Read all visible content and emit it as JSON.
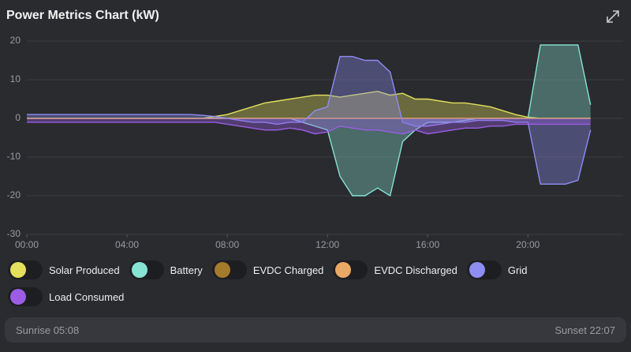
{
  "chart_data": {
    "type": "area",
    "title": "Power Metrics Chart (kW)",
    "x": [
      0,
      0.5,
      1,
      1.5,
      2,
      2.5,
      3,
      3.5,
      4,
      4.5,
      5,
      5.5,
      6,
      6.5,
      7,
      7.5,
      8,
      8.5,
      9,
      9.5,
      10,
      10.5,
      11,
      11.5,
      12,
      12.5,
      13,
      13.5,
      14,
      14.5,
      15,
      15.5,
      16,
      16.5,
      17,
      17.5,
      18,
      18.5,
      19,
      19.5,
      20,
      20.5,
      21,
      21.5,
      22,
      22.5
    ],
    "xlim": [
      0,
      23.8
    ],
    "xticks": [
      {
        "value": 0,
        "label": "00:00"
      },
      {
        "value": 4,
        "label": "04:00"
      },
      {
        "value": 8,
        "label": "08:00"
      },
      {
        "value": 12,
        "label": "12:00"
      },
      {
        "value": 16,
        "label": "16:00"
      },
      {
        "value": 20,
        "label": "20:00"
      }
    ],
    "ylim": [
      -30,
      20
    ],
    "yticks": [
      -30,
      -20,
      -10,
      0,
      10,
      20
    ],
    "grid": true,
    "series": [
      {
        "name": "Solar Produced",
        "color": "#e3e05c",
        "values": [
          0,
          0,
          0,
          0,
          0,
          0,
          0,
          0,
          0,
          0,
          0,
          0,
          0,
          0,
          0,
          0.5,
          1,
          2,
          3,
          4,
          4.5,
          5,
          5.5,
          6,
          6,
          5.5,
          6,
          6.5,
          7,
          6,
          6.5,
          5,
          5,
          4.5,
          4,
          4,
          3.5,
          3,
          2,
          1,
          0.3,
          0,
          0,
          0,
          0,
          0
        ]
      },
      {
        "name": "Battery",
        "color": "#86e3d3",
        "values": [
          0,
          0,
          0,
          0,
          0,
          0,
          0,
          0,
          0,
          0,
          0,
          0,
          0,
          0,
          0,
          0,
          0,
          0,
          0,
          0,
          0,
          0,
          -1,
          -2,
          -3,
          -15,
          -20,
          -20,
          -18,
          -20,
          -6,
          -3,
          -1,
          -1,
          -1,
          -0.5,
          0,
          0,
          0,
          0,
          0,
          19,
          19,
          19,
          19,
          3.5
        ]
      },
      {
        "name": "EVDC Charged",
        "color": "#a47a2c",
        "values": [
          0,
          0,
          0,
          0,
          0,
          0,
          0,
          0,
          0,
          0,
          0,
          0,
          0,
          0,
          0,
          0,
          0,
          0,
          0,
          0,
          0,
          0,
          0,
          0,
          0,
          0,
          0,
          0,
          0,
          0,
          0,
          0,
          0,
          0,
          0,
          0,
          0,
          0,
          0,
          0,
          0,
          0,
          0,
          0,
          0,
          0
        ]
      },
      {
        "name": "EVDC Discharged",
        "color": "#eaa866",
        "values": [
          0,
          0,
          0,
          0,
          0,
          0,
          0,
          0,
          0,
          0,
          0,
          0,
          0,
          0,
          0,
          0,
          0,
          0,
          0,
          0,
          0,
          0,
          0,
          0,
          0,
          0,
          0,
          0,
          0,
          0,
          0,
          0,
          0,
          0,
          0,
          0,
          0,
          0,
          0,
          0,
          0,
          0,
          0,
          0,
          0,
          0
        ]
      },
      {
        "name": "Grid",
        "color": "#8d8df2",
        "values": [
          1,
          1,
          1,
          1,
          1,
          1,
          1,
          1,
          1,
          1,
          1,
          1,
          1,
          1,
          0.8,
          0.5,
          0,
          -0.5,
          -1,
          -1,
          -1.5,
          -1,
          -1,
          2,
          3,
          16,
          16,
          15,
          15,
          12,
          -1,
          -2,
          -2,
          -1.5,
          -1,
          -1,
          -0.5,
          -0.5,
          -0.5,
          -1,
          -1,
          -17,
          -17,
          -17,
          -16,
          -3
        ]
      },
      {
        "name": "Load Consumed",
        "color": "#9b5de5",
        "values": [
          -1,
          -1,
          -1,
          -1,
          -1,
          -1,
          -1,
          -1,
          -1,
          -1,
          -1,
          -1,
          -1,
          -1,
          -1,
          -1,
          -1.5,
          -2,
          -2.5,
          -3,
          -3,
          -2.5,
          -3,
          -4,
          -3.5,
          -2,
          -2.5,
          -3,
          -3,
          -3.5,
          -4,
          -3,
          -4,
          -3.5,
          -3,
          -2.5,
          -2.5,
          -2,
          -2,
          -1.5,
          -1.5,
          -1.5,
          -1.5,
          -1.5,
          -1.5,
          -1.5
        ]
      }
    ]
  },
  "footer": {
    "sunrise": "Sunrise 05:08",
    "sunset": "Sunset 22:07"
  }
}
